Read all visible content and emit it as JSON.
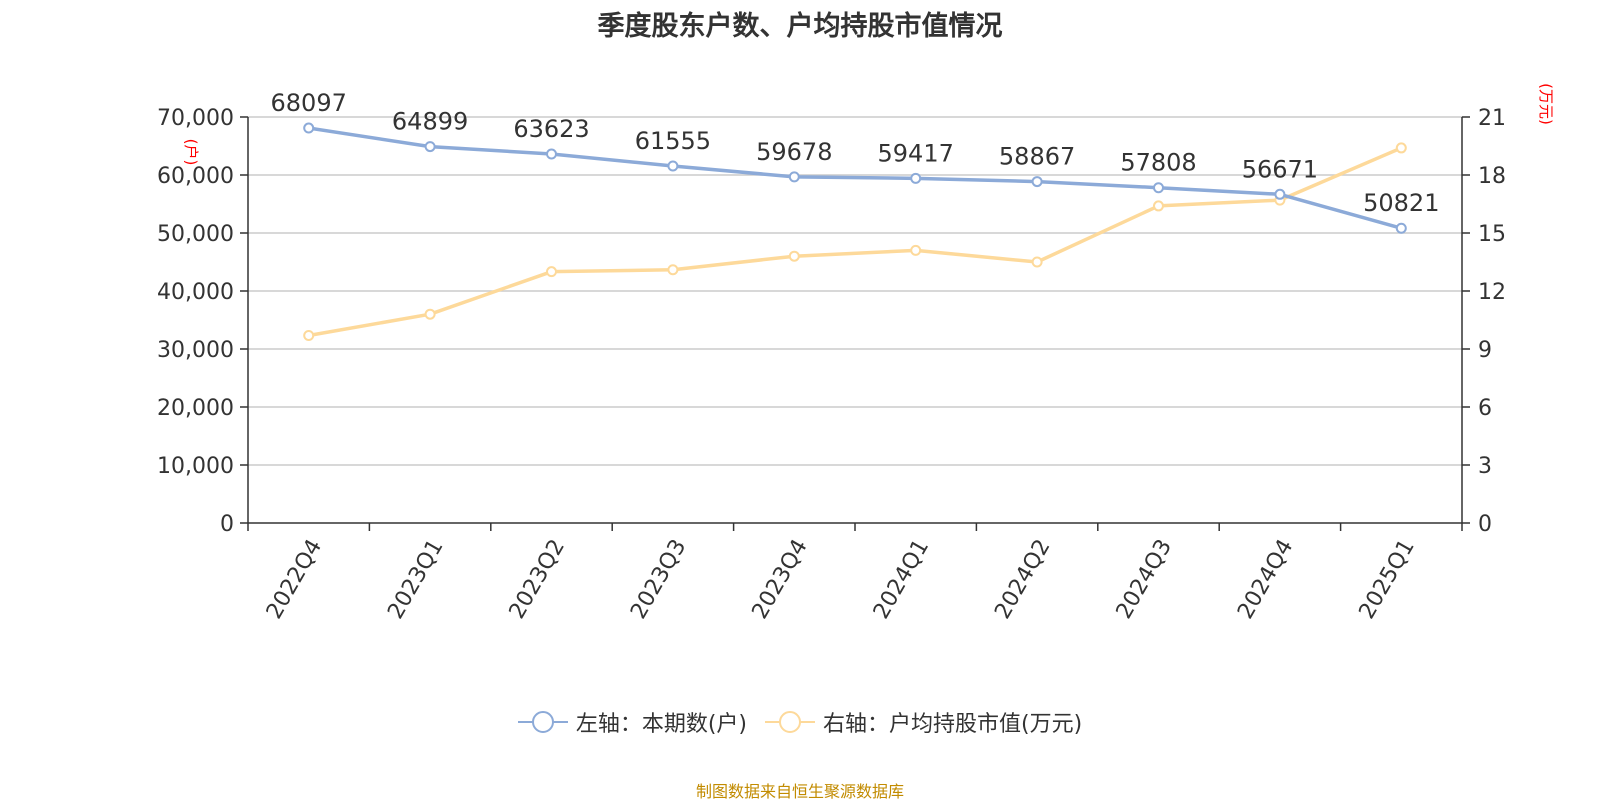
{
  "title": "季度股东户数、户均持股市值情况",
  "source_note": "制图数据来自恒生聚源数据库",
  "legend": {
    "left": "左轴：本期数(户)",
    "right": "右轴：户均持股市值(万元)"
  },
  "axis": {
    "left_unit": "(户)",
    "right_unit": "(万元)"
  },
  "colors": {
    "left_series": "#8caad8",
    "right_series": "#fdd99a",
    "unit_label": "#ff0000",
    "source": "#c28b00"
  },
  "chart_data": {
    "type": "line",
    "categories": [
      "2022Q4",
      "2023Q1",
      "2023Q2",
      "2023Q3",
      "2023Q4",
      "2024Q1",
      "2024Q2",
      "2024Q3",
      "2024Q4",
      "2025Q1"
    ],
    "series": [
      {
        "name": "左轴：本期数(户)",
        "axis": "left",
        "values": [
          68097,
          64899,
          63623,
          61555,
          59678,
          59417,
          58867,
          57808,
          56671,
          50821
        ],
        "data_labels": [
          "68097",
          "64899",
          "63623",
          "61555",
          "59678",
          "59417",
          "58867",
          "57808",
          "56671",
          "50821"
        ]
      },
      {
        "name": "右轴：户均持股市值(万元)",
        "axis": "right",
        "values": [
          9.7,
          10.8,
          13.0,
          13.1,
          13.8,
          14.1,
          13.5,
          16.4,
          16.7,
          19.4
        ]
      }
    ],
    "left_axis": {
      "min": 0,
      "max": 70000,
      "ticks": [
        0,
        10000,
        20000,
        30000,
        40000,
        50000,
        60000,
        70000
      ],
      "tick_labels": [
        "0",
        "10,000",
        "20,000",
        "30,000",
        "40,000",
        "50,000",
        "60,000",
        "70,000"
      ]
    },
    "right_axis": {
      "min": 0,
      "max": 21,
      "ticks": [
        0,
        3,
        6,
        9,
        12,
        15,
        18,
        21
      ],
      "tick_labels": [
        "0",
        "3",
        "6",
        "9",
        "12",
        "15",
        "18",
        "21"
      ]
    },
    "grid": true,
    "legend_position": "bottom"
  }
}
